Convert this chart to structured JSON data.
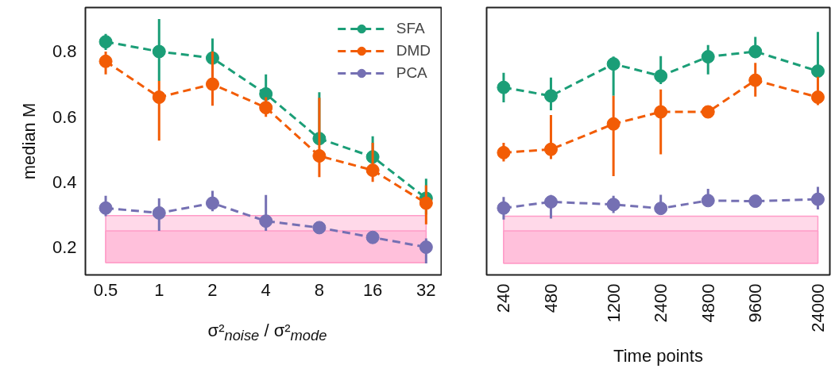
{
  "chart_data": [
    {
      "type": "line",
      "categories": [
        "0.5",
        "1",
        "2",
        "4",
        "8",
        "16",
        "32"
      ],
      "xlabel": "σ²$_{noise}$ / σ²$_{mode}$",
      "ylabel": "median M",
      "ylim": [
        0.115,
        0.935
      ],
      "yticks": [
        0.2,
        0.4,
        0.6,
        0.8
      ],
      "legend": "top right",
      "marker": "circle",
      "line_style": "dashed",
      "grid": false,
      "series": [
        {
          "name": "SFA",
          "color": "#1b9e77",
          "values": [
            0.83,
            0.8,
            0.78,
            0.67,
            0.533,
            0.477,
            0.35
          ],
          "errors": [
            [
              0.805,
              0.854
            ],
            [
              0.71,
              0.9
            ],
            [
              0.72,
              0.84
            ],
            [
              0.61,
              0.73
            ],
            [
              0.533,
              0.675
            ],
            [
              0.477,
              0.54
            ],
            [
              0.3,
              0.41
            ]
          ]
        },
        {
          "name": "DMD",
          "color": "#f25c05",
          "values": [
            0.77,
            0.66,
            0.7,
            0.628,
            0.48,
            0.436,
            0.335
          ],
          "errors": [
            [
              0.73,
              0.8
            ],
            [
              0.527,
              0.71
            ],
            [
              0.634,
              0.8
            ],
            [
              0.6,
              0.66
            ],
            [
              0.415,
              0.658
            ],
            [
              0.4,
              0.52
            ],
            [
              0.27,
              0.39
            ]
          ]
        },
        {
          "name": "PCA",
          "color": "#7570b3",
          "values": [
            0.32,
            0.305,
            0.335,
            0.28,
            0.26,
            0.23,
            0.2
          ],
          "errors": [
            [
              0.295,
              0.358
            ],
            [
              0.25,
              0.35
            ],
            [
              0.31,
              0.373
            ],
            [
              0.25,
              0.36
            ],
            null,
            [
              0.215,
              0.245
            ],
            [
              0.15,
              0.227
            ]
          ]
        }
      ],
      "bands": [
        {
          "axis": "y",
          "from": 0.153,
          "to": 0.297,
          "color": "#ffd9e9"
        },
        {
          "axis": "y",
          "from": 0.153,
          "to": 0.25,
          "color": "#ffc0db"
        }
      ]
    },
    {
      "type": "line",
      "x": [
        240,
        480,
        1200,
        2400,
        4800,
        9600,
        24000
      ],
      "xlabel": "Time points",
      "log": "x",
      "xlim": [
        187,
        28600
      ],
      "xticks": [
        240,
        480,
        1200,
        2400,
        4800,
        9600,
        24000
      ],
      "ylim": [
        0.115,
        0.935
      ],
      "tick_labels": "x",
      "marker": "circle",
      "line_style": "dashed",
      "grid": false,
      "series": [
        {
          "color": "#1b9e77",
          "values": [
            0.69,
            0.664,
            0.762,
            0.725,
            0.784,
            0.8,
            0.74
          ],
          "errors": [
            [
              0.644,
              0.735
            ],
            [
              0.62,
              0.72
            ],
            [
              0.664,
              0.785
            ],
            [
              0.7,
              0.786
            ],
            [
              0.73,
              0.82
            ],
            [
              0.78,
              0.845
            ],
            [
              0.723,
              0.86
            ]
          ]
        },
        {
          "color": "#f25c05",
          "values": [
            0.49,
            0.5,
            0.578,
            0.615,
            0.615,
            0.712,
            0.66
          ],
          "errors": [
            [
              0.463,
              0.52
            ],
            [
              0.47,
              0.605
            ],
            [
              0.418,
              0.664
            ],
            [
              0.485,
              0.684
            ],
            null,
            [
              0.662,
              0.765
            ],
            [
              0.636,
              0.723
            ]
          ]
        },
        {
          "color": "#7570b3",
          "values": [
            0.32,
            0.339,
            0.331,
            0.319,
            0.343,
            0.341,
            0.347
          ],
          "errors": [
            [
              0.285,
              0.354
            ],
            [
              0.288,
              0.36
            ],
            [
              0.305,
              0.358
            ],
            [
              0.319,
              0.361
            ],
            [
              0.33,
              0.379
            ],
            null,
            [
              0.316,
              0.385
            ]
          ]
        }
      ],
      "bands": [
        {
          "axis": "y",
          "from": 0.151,
          "to": 0.295,
          "color": "#ffd9e9"
        },
        {
          "axis": "y",
          "from": 0.151,
          "to": 0.25,
          "color": "#ffc0db"
        }
      ]
    }
  ]
}
